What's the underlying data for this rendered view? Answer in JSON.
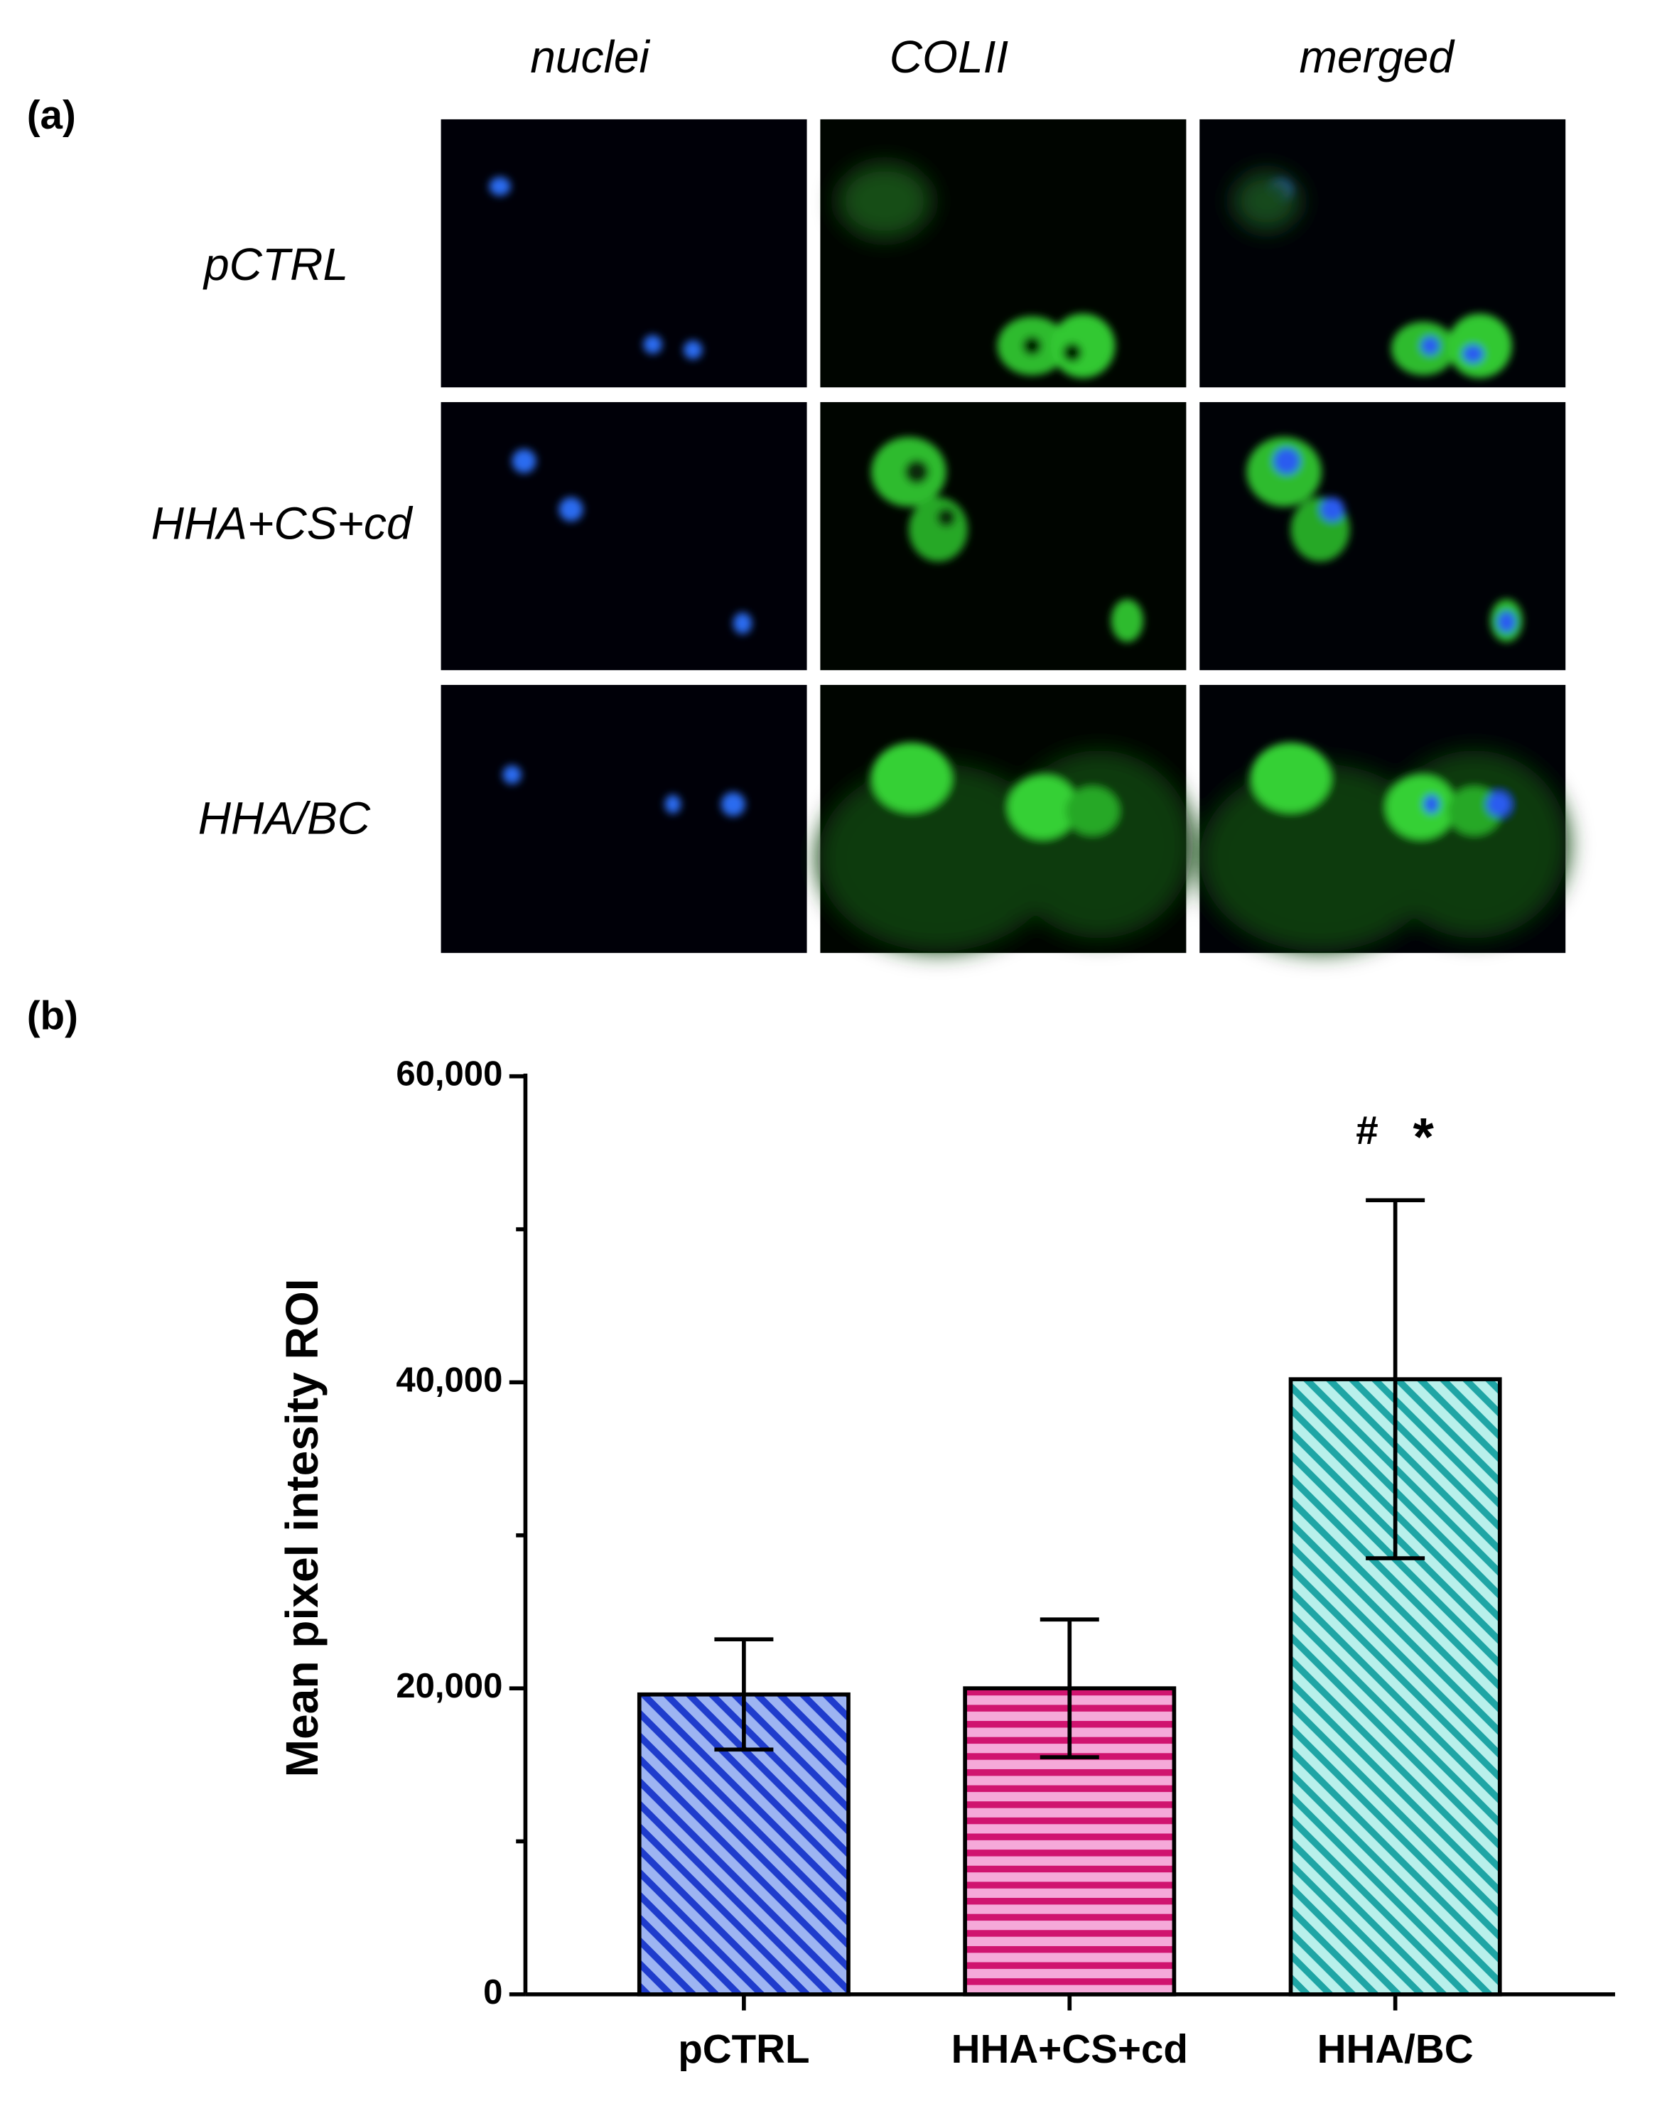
{
  "panel_a": {
    "label": "(a)",
    "columns": [
      "nuclei",
      "COLII",
      "merged"
    ],
    "rows": [
      "pCTRL",
      "HHA+CS+cd",
      "HHA/BC"
    ]
  },
  "chart_data": {
    "type": "bar",
    "panel_label": "(b)",
    "y_label": "Mean pixel intesity ROI",
    "categories": [
      "pCTRL",
      "HHA+CS+cd",
      "HHA/BC"
    ],
    "values": [
      19600,
      20000,
      40200
    ],
    "errors": [
      3600,
      4500,
      11700
    ],
    "colors": [
      "#9db4f2",
      "#f5a9d9",
      "#b8f0eb"
    ],
    "stripe_colors": [
      "#1f3ccc",
      "#d0136f",
      "#1fa5a5"
    ],
    "patterns": [
      "diagonal",
      "horizontal",
      "diagonal"
    ],
    "ylim": [
      0,
      60000
    ],
    "yticks": [
      0,
      {
        "value": 20000,
        "label": "20,000"
      },
      {
        "value": 40000,
        "label": "40,000"
      },
      {
        "value": 60000,
        "label": "60,000"
      }
    ],
    "minor_yticks": [
      10000,
      30000,
      50000
    ],
    "significance_labels": [
      "#",
      "*"
    ]
  }
}
